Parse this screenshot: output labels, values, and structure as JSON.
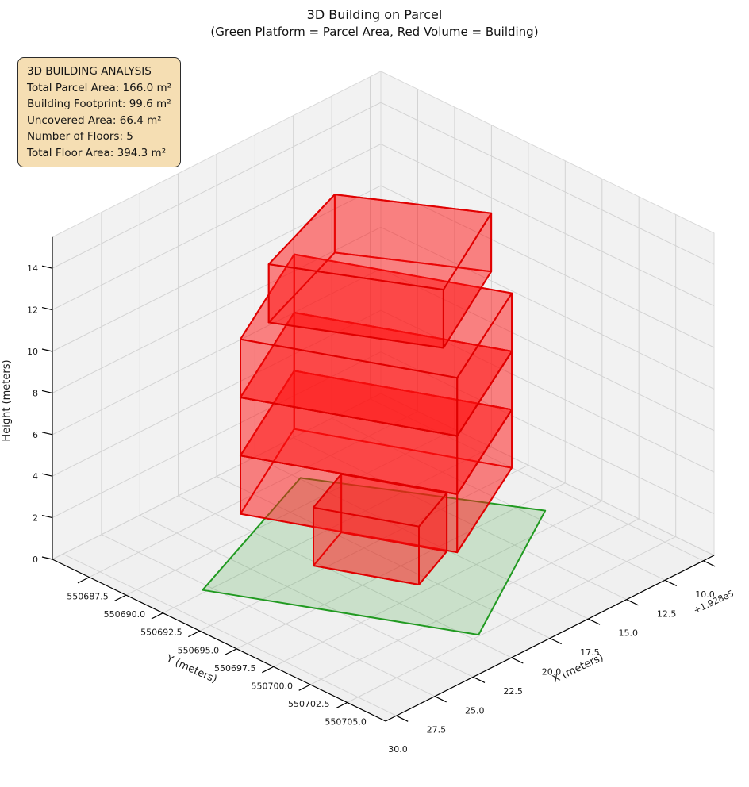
{
  "title": {
    "line1": "3D Building on Parcel",
    "line2": "(Green Platform = Parcel Area, Red Volume = Building)"
  },
  "info_box": {
    "lines": [
      "3D BUILDING ANALYSIS",
      "Total Parcel Area: 166.0 m²",
      "Building Footprint: 99.6 m²",
      "Uncovered Area: 66.4 m²",
      "Number of Floors: 5",
      "Total Floor Area: 394.3 m²"
    ],
    "background": "#f5deb3",
    "border_color": "#2b2b2b"
  },
  "chart_data": {
    "type": "3d-building-plot",
    "axes": {
      "x": {
        "label": "X (meters)",
        "offset_text": "+1.928e5",
        "lim": [
          9.3,
          30.7
        ],
        "ticks": [
          {
            "v": 10.0,
            "label": "10.0"
          },
          {
            "v": 12.5,
            "label": "12.5"
          },
          {
            "v": 15.0,
            "label": "15.0"
          },
          {
            "v": 17.5,
            "label": "17.5"
          },
          {
            "v": 20.0,
            "label": "20.0"
          },
          {
            "v": 22.5,
            "label": "22.5"
          },
          {
            "v": 25.0,
            "label": "25.0"
          },
          {
            "v": 27.5,
            "label": "27.5"
          },
          {
            "v": 30.0,
            "label": "30.0"
          }
        ]
      },
      "y": {
        "label": "Y (meters)",
        "lim": [
          550685.0,
          550707.6
        ],
        "ticks": [
          {
            "v": 550687.5,
            "label": "550687.5"
          },
          {
            "v": 550690.0,
            "label": "550690.0"
          },
          {
            "v": 550692.5,
            "label": "550692.5"
          },
          {
            "v": 550695.0,
            "label": "550695.0"
          },
          {
            "v": 550697.5,
            "label": "550697.5"
          },
          {
            "v": 550700.0,
            "label": "550700.0"
          },
          {
            "v": 550702.5,
            "label": "550702.5"
          },
          {
            "v": 550705.0,
            "label": "550705.0"
          }
        ]
      },
      "z": {
        "label": "Height (meters)",
        "lim": [
          0,
          15.5
        ],
        "ticks": [
          {
            "v": 0,
            "label": "0"
          },
          {
            "v": 2,
            "label": "2"
          },
          {
            "v": 4,
            "label": "4"
          },
          {
            "v": 6,
            "label": "6"
          },
          {
            "v": 8,
            "label": "8"
          },
          {
            "v": 10,
            "label": "10"
          },
          {
            "v": 12,
            "label": "12"
          },
          {
            "v": 14,
            "label": "14"
          }
        ]
      }
    },
    "parcel": {
      "z": 0,
      "vertices_xy": [
        [
          27.92,
          550692.3
        ],
        [
          17.42,
          550688.0
        ],
        [
          11.75,
          550698.7
        ],
        [
          22.05,
          550704.9
        ]
      ],
      "fill": "#30a030",
      "fill_opacity": 0.2,
      "edge": "#219a21"
    },
    "building": {
      "floor_height": 2.8,
      "num_floors": 5,
      "fill": "#ff1414",
      "fill_opacity": 0.3,
      "edge": "#e00000",
      "boxes": [
        {
          "name": "floor-2",
          "z0": 2.8,
          "z1": 5.6,
          "footprint": [
            [
              25.53,
              550692.37
            ],
            [
              21.14,
              550702.5
            ],
            [
              13.83,
              550698.6
            ],
            [
              18.23,
              550688.42
            ]
          ]
        },
        {
          "name": "floor-3",
          "z0": 5.6,
          "z1": 8.4,
          "footprint": [
            [
              25.53,
              550692.37
            ],
            [
              21.14,
              550702.5
            ],
            [
              13.83,
              550698.6
            ],
            [
              18.23,
              550688.42
            ]
          ]
        },
        {
          "name": "floor-4",
          "z0": 8.4,
          "z1": 11.2,
          "footprint": [
            [
              25.53,
              550692.37
            ],
            [
              21.14,
              550702.5
            ],
            [
              13.83,
              550698.6
            ],
            [
              18.23,
              550688.42
            ]
          ]
        },
        {
          "name": "floor-1",
          "z0": 0.0,
          "z1": 2.8,
          "footprint": [
            [
              22.78,
              550694.46
            ],
            [
              20.66,
              550699.41
            ],
            [
              17.58,
              550698.09
            ],
            [
              19.7,
              550693.14
            ]
          ]
        },
        {
          "name": "floor-5",
          "z0": 11.2,
          "z1": 14.0,
          "footprint": [
            [
              23.52,
              550692.2
            ],
            [
              19.61,
              550699.98
            ],
            [
              13.06,
              550696.4
            ],
            [
              16.82,
              550689.7
            ]
          ]
        }
      ]
    },
    "projection": {
      "origin": [
        66,
        705
      ],
      "vx": [
        414,
        -209
      ],
      "vy": [
        420,
        204
      ],
      "zpx": 26.2,
      "pane_fill": "#f2f2f2",
      "floor_fill": "#f0f0f0",
      "pane_stroke": "#d9d9d9",
      "grid_color": "#d3d3d3",
      "spine_color": "#000000",
      "text_color": "#1a1a1a"
    }
  }
}
